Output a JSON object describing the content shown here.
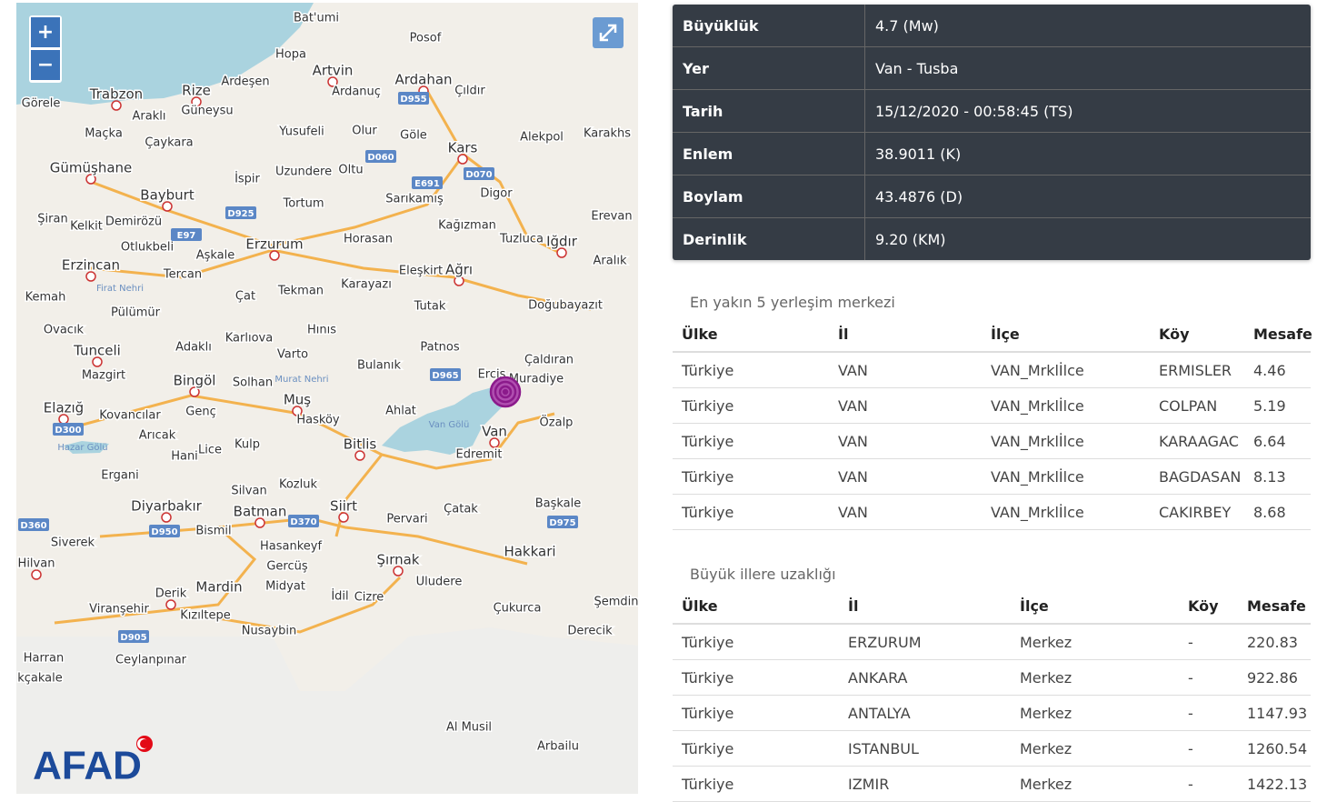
{
  "map": {
    "zoom_in": "+",
    "zoom_out": "−",
    "logo": "AFAD",
    "places": [
      "Bat'umi",
      "Posof",
      "Hopa",
      "Artvin",
      "Ardahan",
      "Ardeşen",
      "Ardanuç",
      "Çıldır",
      "Görele",
      "Trabzon",
      "Rize",
      "Güneysu",
      "Araklı",
      "Maçka",
      "Çaykara",
      "Yusufeli",
      "Olur",
      "Göle",
      "Alekpol",
      "Karakhs",
      "Kars",
      "Gümüşhane",
      "Oltu",
      "Uzundere",
      "İspir",
      "Bayburt",
      "Digor",
      "Tortum",
      "Sarıkamış",
      "Şiran",
      "Kelkit",
      "Demirözü",
      "Kağızman",
      "Erevan",
      "Otlukbeli",
      "Horasan",
      "Tuzluca",
      "Iğdır",
      "Erzurum",
      "Aşkale",
      "Erzincan",
      "Aralık",
      "Eleşkirt",
      "Ağrı",
      "Tercan",
      "Kemah",
      "Çat",
      "Tekman",
      "Karayazı",
      "Doğubayazıt",
      "Tutak",
      "Pülümür",
      "Ovacık",
      "Hınıs",
      "Karlıova",
      "Patnos",
      "Adaklı",
      "Tunceli",
      "Varto",
      "Çaldıran",
      "Bulanık",
      "Mazgirt",
      "Bingöl",
      "Solhan",
      "Erciş",
      "Muradiye",
      "Muş",
      "Elazığ",
      "Ahlat",
      "Kovancılar",
      "Genç",
      "Hasköy",
      "Özalp",
      "Van",
      "Arıcak",
      "Bitlis",
      "Edremit",
      "Kulp",
      "Lice",
      "Hani",
      "Ergani",
      "Silvan",
      "Kozluk",
      "Siirt",
      "Başkale",
      "Diyarbakır",
      "Çatak",
      "Pervari",
      "Batman",
      "Bismil",
      "Siverek",
      "Hasankeyf",
      "Hakkari",
      "Şırnak",
      "Hilvan",
      "Gercüş",
      "Uludere",
      "Midyat",
      "Mardin",
      "Derik",
      "İdil",
      "Cizre",
      "Şemdin",
      "Çukurca",
      "Viranşehir",
      "Kızıltepe",
      "Derecik",
      "Nusaybin",
      "Harran",
      "Ceylanpınar",
      "kçakale",
      "Al Musil",
      "Arbailu"
    ],
    "roads": [
      "D955",
      "D060",
      "E691",
      "D070",
      "D925",
      "E97",
      "D965",
      "D300",
      "D360",
      "D950",
      "D370",
      "D975",
      "D905"
    ],
    "waters": [
      "Van Gölü",
      "Hazar Gölü",
      "Firat Nehri",
      "Murat Nehri"
    ]
  },
  "summary": {
    "rows": [
      [
        "Büyüklük",
        "4.7 (Mw)"
      ],
      [
        "Yer",
        "Van - Tusba"
      ],
      [
        "Tarih",
        "15/12/2020 - 00:58:45 (TS)"
      ],
      [
        "Enlem",
        "38.9011 (K)"
      ],
      [
        "Boylam",
        "43.4876 (D)"
      ],
      [
        "Derinlik",
        "9.20 (KM)"
      ]
    ]
  },
  "nearest": {
    "title": "En yakın 5 yerleşim merkezi",
    "columns": [
      "Ülke",
      "İl",
      "İlçe",
      "Köy",
      "Mesafe"
    ],
    "rows": [
      [
        "Türkiye",
        "VAN",
        "VAN_Mrklİlce",
        "ERMISLER",
        "4.46"
      ],
      [
        "Türkiye",
        "VAN",
        "VAN_Mrklİlce",
        "COLPAN",
        "5.19"
      ],
      [
        "Türkiye",
        "VAN",
        "VAN_Mrklİlce",
        "KARAAGAC",
        "6.64"
      ],
      [
        "Türkiye",
        "VAN",
        "VAN_Mrklİlce",
        "BAGDASAN",
        "8.13"
      ],
      [
        "Türkiye",
        "VAN",
        "VAN_Mrklİlce",
        "CAKIRBEY",
        "8.68"
      ]
    ]
  },
  "cities": {
    "title": "Büyük illere uzaklığı",
    "columns": [
      "Ülke",
      "İl",
      "İlçe",
      "Köy",
      "Mesafe"
    ],
    "rows": [
      [
        "Türkiye",
        "ERZURUM",
        "Merkez",
        "-",
        "220.83"
      ],
      [
        "Türkiye",
        "ANKARA",
        "Merkez",
        "-",
        "922.86"
      ],
      [
        "Türkiye",
        "ANTALYA",
        "Merkez",
        "-",
        "1147.93"
      ],
      [
        "Türkiye",
        "ISTANBUL",
        "Merkez",
        "-",
        "1260.54"
      ],
      [
        "Türkiye",
        "IZMIR",
        "Merkez",
        "-",
        "1422.13"
      ]
    ]
  }
}
